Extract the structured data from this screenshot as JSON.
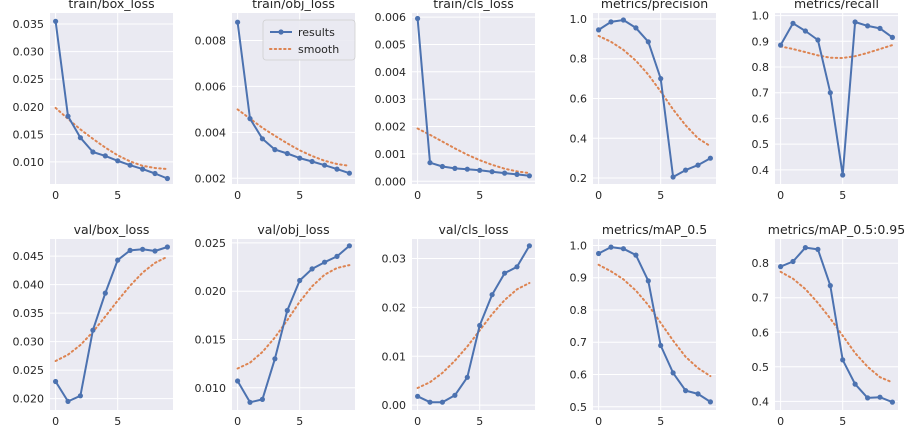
{
  "figure": {
    "legend": {
      "results_label": "results",
      "smooth_label": "smooth"
    }
  },
  "colors": {
    "results": "#4c72b0",
    "smooth": "#dd8452",
    "axes_bg": "#eaeaf2",
    "grid": "#ffffff",
    "text": "#262626"
  },
  "chart_data": [
    {
      "type": "line",
      "title": "train/box_loss",
      "x": [
        0,
        1,
        2,
        3,
        4,
        5,
        6,
        7,
        8,
        9
      ],
      "series": [
        {
          "name": "results",
          "values": [
            0.0355,
            0.0183,
            0.0144,
            0.0118,
            0.0111,
            0.0102,
            0.0094,
            0.0087,
            0.0079,
            0.007
          ]
        },
        {
          "name": "smooth",
          "values": [
            0.0198,
            0.0178,
            0.0159,
            0.0142,
            0.0126,
            0.0112,
            0.0101,
            0.0093,
            0.0089,
            0.0087
          ]
        }
      ],
      "xlim": [
        -0.45,
        9.45
      ],
      "ylim": [
        0.006,
        0.037
      ],
      "xticks": [
        0,
        5
      ],
      "xtick_labels": [
        "0",
        "5"
      ],
      "yticks": [
        0.01,
        0.015,
        0.02,
        0.025,
        0.03,
        0.035
      ],
      "ytick_labels": [
        "0.010",
        "0.015",
        "0.020",
        "0.025",
        "0.030",
        "0.035"
      ]
    },
    {
      "type": "line",
      "title": "train/obj_loss",
      "x": [
        0,
        1,
        2,
        3,
        4,
        5,
        6,
        7,
        8,
        9
      ],
      "series": [
        {
          "name": "results",
          "values": [
            0.0088,
            0.0046,
            0.00372,
            0.00325,
            0.00308,
            0.00288,
            0.00273,
            0.00257,
            0.0024,
            0.00222
          ]
        },
        {
          "name": "smooth",
          "values": [
            0.005,
            0.0046,
            0.0042,
            0.00385,
            0.00352,
            0.00322,
            0.00297,
            0.00276,
            0.00262,
            0.00254
          ]
        }
      ],
      "xlim": [
        -0.45,
        9.45
      ],
      "ylim": [
        0.00175,
        0.0092
      ],
      "xticks": [
        0,
        5
      ],
      "xtick_labels": [
        "0",
        "5"
      ],
      "yticks": [
        0.002,
        0.004,
        0.006,
        0.008
      ],
      "ytick_labels": [
        "0.002",
        "0.004",
        "0.006",
        "0.008"
      ]
    },
    {
      "type": "line",
      "title": "train/cls_loss",
      "x": [
        0,
        1,
        2,
        3,
        4,
        5,
        6,
        7,
        8,
        9
      ],
      "series": [
        {
          "name": "results",
          "values": [
            0.00595,
            0.00068,
            0.00054,
            0.00047,
            0.00044,
            0.0004,
            0.00035,
            0.0003,
            0.00025,
            0.0002
          ]
        },
        {
          "name": "smooth",
          "values": [
            0.00193,
            0.0017,
            0.00145,
            0.0012,
            0.00097,
            0.00077,
            0.0006,
            0.00046,
            0.00036,
            0.0003
          ]
        }
      ],
      "xlim": [
        -0.45,
        9.45
      ],
      "ylim": [
        -0.0001,
        0.00615
      ],
      "xticks": [
        0,
        5
      ],
      "xtick_labels": [
        "0",
        "5"
      ],
      "yticks": [
        0.0,
        0.001,
        0.002,
        0.003,
        0.004,
        0.005,
        0.006
      ],
      "ytick_labels": [
        "0.000",
        "0.001",
        "0.002",
        "0.003",
        "0.004",
        "0.005",
        "0.006"
      ]
    },
    {
      "type": "line",
      "title": "metrics/precision",
      "x": [
        0,
        1,
        2,
        3,
        4,
        5,
        6,
        7,
        8,
        9
      ],
      "series": [
        {
          "name": "results",
          "values": [
            0.945,
            0.985,
            0.995,
            0.955,
            0.885,
            0.7,
            0.205,
            0.24,
            0.265,
            0.3
          ]
        },
        {
          "name": "smooth",
          "values": [
            0.915,
            0.885,
            0.845,
            0.79,
            0.72,
            0.635,
            0.545,
            0.465,
            0.4,
            0.36
          ]
        }
      ],
      "xlim": [
        -0.45,
        9.45
      ],
      "ylim": [
        0.17,
        1.03
      ],
      "xticks": [
        0,
        5
      ],
      "xtick_labels": [
        "0",
        "5"
      ],
      "yticks": [
        0.2,
        0.4,
        0.6,
        0.8,
        1.0
      ],
      "ytick_labels": [
        "0.2",
        "0.4",
        "0.6",
        "0.8",
        "1.0"
      ]
    },
    {
      "type": "line",
      "title": "metrics/recall",
      "x": [
        0,
        1,
        2,
        3,
        4,
        5,
        6,
        7,
        8,
        9
      ],
      "series": [
        {
          "name": "results",
          "values": [
            0.885,
            0.97,
            0.94,
            0.905,
            0.7,
            0.38,
            0.975,
            0.96,
            0.95,
            0.915
          ]
        },
        {
          "name": "smooth",
          "values": [
            0.88,
            0.87,
            0.858,
            0.845,
            0.836,
            0.835,
            0.842,
            0.855,
            0.87,
            0.885
          ]
        }
      ],
      "xlim": [
        -0.45,
        9.45
      ],
      "ylim": [
        0.345,
        1.01
      ],
      "xticks": [
        0,
        5
      ],
      "xtick_labels": [
        "0",
        "5"
      ],
      "yticks": [
        0.4,
        0.5,
        0.6,
        0.7,
        0.8,
        0.9,
        1.0
      ],
      "ytick_labels": [
        "0.4",
        "0.5",
        "0.6",
        "0.7",
        "0.8",
        "0.9",
        "1.0"
      ]
    },
    {
      "type": "line",
      "title": "val/box_loss",
      "x": [
        0,
        1,
        2,
        3,
        4,
        5,
        6,
        7,
        8,
        9
      ],
      "series": [
        {
          "name": "results",
          "values": [
            0.023,
            0.0195,
            0.0205,
            0.032,
            0.0385,
            0.0443,
            0.046,
            0.0462,
            0.0459,
            0.0466
          ]
        },
        {
          "name": "smooth",
          "values": [
            0.0266,
            0.0277,
            0.0294,
            0.0317,
            0.0344,
            0.0372,
            0.0398,
            0.0421,
            0.0438,
            0.0449
          ]
        }
      ],
      "xlim": [
        -0.45,
        9.45
      ],
      "ylim": [
        0.018,
        0.048
      ],
      "xticks": [
        0,
        5
      ],
      "xtick_labels": [
        "0",
        "5"
      ],
      "yticks": [
        0.02,
        0.025,
        0.03,
        0.035,
        0.04,
        0.045
      ],
      "ytick_labels": [
        "0.020",
        "0.025",
        "0.030",
        "0.035",
        "0.040",
        "0.045"
      ]
    },
    {
      "type": "line",
      "title": "val/obj_loss",
      "x": [
        0,
        1,
        2,
        3,
        4,
        5,
        6,
        7,
        8,
        9
      ],
      "series": [
        {
          "name": "results",
          "values": [
            0.0107,
            0.0085,
            0.0088,
            0.013,
            0.018,
            0.0211,
            0.0223,
            0.023,
            0.0236,
            0.0247
          ]
        },
        {
          "name": "smooth",
          "values": [
            0.012,
            0.0126,
            0.0137,
            0.0152,
            0.017,
            0.0189,
            0.0205,
            0.0217,
            0.0224,
            0.0227
          ]
        }
      ],
      "xlim": [
        -0.45,
        9.45
      ],
      "ylim": [
        0.0077,
        0.0254
      ],
      "xticks": [
        0,
        5
      ],
      "xtick_labels": [
        "0",
        "5"
      ],
      "yticks": [
        0.01,
        0.015,
        0.02,
        0.025
      ],
      "ytick_labels": [
        "0.010",
        "0.015",
        "0.020",
        "0.025"
      ]
    },
    {
      "type": "line",
      "title": "val/cls_loss",
      "x": [
        0,
        1,
        2,
        3,
        4,
        5,
        6,
        7,
        8,
        9
      ],
      "series": [
        {
          "name": "results",
          "values": [
            0.0018,
            0.0006,
            0.0006,
            0.002,
            0.0057,
            0.0163,
            0.0226,
            0.027,
            0.0283,
            0.0326
          ]
        },
        {
          "name": "smooth",
          "values": [
            0.0035,
            0.0047,
            0.0066,
            0.0091,
            0.012,
            0.0153,
            0.0186,
            0.0215,
            0.0237,
            0.025
          ]
        }
      ],
      "xlim": [
        -0.45,
        9.45
      ],
      "ylim": [
        -0.001,
        0.034
      ],
      "xticks": [
        0,
        5
      ],
      "xtick_labels": [
        "0",
        "5"
      ],
      "yticks": [
        0.0,
        0.01,
        0.02,
        0.03
      ],
      "ytick_labels": [
        "0.00",
        "0.01",
        "0.02",
        "0.03"
      ]
    },
    {
      "type": "line",
      "title": "metrics/mAP_0.5",
      "x": [
        0,
        1,
        2,
        3,
        4,
        5,
        6,
        7,
        8,
        9
      ],
      "series": [
        {
          "name": "results",
          "values": [
            0.975,
            0.995,
            0.99,
            0.97,
            0.89,
            0.69,
            0.605,
            0.55,
            0.54,
            0.515
          ]
        },
        {
          "name": "smooth",
          "values": [
            0.94,
            0.92,
            0.895,
            0.86,
            0.815,
            0.76,
            0.705,
            0.655,
            0.62,
            0.595
          ]
        }
      ],
      "xlim": [
        -0.45,
        9.45
      ],
      "ylim": [
        0.49,
        1.02
      ],
      "xticks": [
        0,
        5
      ],
      "xtick_labels": [
        "0",
        "5"
      ],
      "yticks": [
        0.5,
        0.6,
        0.7,
        0.8,
        0.9,
        1.0
      ],
      "ytick_labels": [
        "0.5",
        "0.6",
        "0.7",
        "0.8",
        "0.9",
        "1.0"
      ]
    },
    {
      "type": "line",
      "title": "metrics/mAP_0.5:0.95",
      "x": [
        0,
        1,
        2,
        3,
        4,
        5,
        6,
        7,
        8,
        9
      ],
      "series": [
        {
          "name": "results",
          "values": [
            0.79,
            0.805,
            0.845,
            0.84,
            0.735,
            0.52,
            0.45,
            0.41,
            0.412,
            0.398
          ]
        },
        {
          "name": "smooth",
          "values": [
            0.775,
            0.755,
            0.725,
            0.685,
            0.64,
            0.59,
            0.54,
            0.5,
            0.47,
            0.455
          ]
        }
      ],
      "xlim": [
        -0.45,
        9.45
      ],
      "ylim": [
        0.375,
        0.87
      ],
      "xticks": [
        0,
        5
      ],
      "xtick_labels": [
        "0",
        "5"
      ],
      "yticks": [
        0.4,
        0.5,
        0.6,
        0.7,
        0.8
      ],
      "ytick_labels": [
        "0.4",
        "0.5",
        "0.6",
        "0.7",
        "0.8"
      ]
    }
  ]
}
